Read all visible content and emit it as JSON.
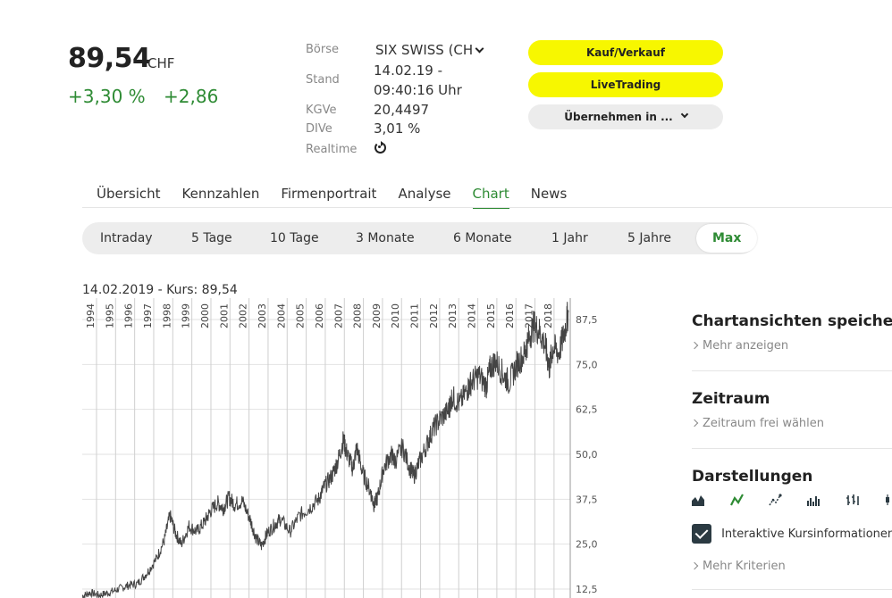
{
  "quote": {
    "price": "89,54",
    "currency": "CHF",
    "change_pct": "+3,30 %",
    "change_abs": "+2,86"
  },
  "info": {
    "exchange_label": "Börse",
    "exchange_value": "SIX SWISS (CH",
    "stand_label": "Stand",
    "stand_date": "14.02.19 -",
    "stand_time": "09:40:16 Uhr",
    "kgve_label": "KGVe",
    "kgve_value": "20,4497",
    "dive_label": "DIVe",
    "dive_value": "3,01 %",
    "realtime_label": "Realtime",
    "realtime_icon": "refresh-icon"
  },
  "buttons": {
    "buy_sell": "Kauf/Verkauf",
    "livetrading": "LiveTrading",
    "take_over": "Übernehmen in ..."
  },
  "tabs": [
    {
      "label": "Übersicht",
      "active": false
    },
    {
      "label": "Kennzahlen",
      "active": false
    },
    {
      "label": "Firmenportrait",
      "active": false
    },
    {
      "label": "Analyse",
      "active": false
    },
    {
      "label": "Chart",
      "active": true
    },
    {
      "label": "News",
      "active": false
    }
  ],
  "ranges": [
    {
      "label": "Intraday",
      "active": false
    },
    {
      "label": "5 Tage",
      "active": false
    },
    {
      "label": "10 Tage",
      "active": false
    },
    {
      "label": "3 Monate",
      "active": false
    },
    {
      "label": "6 Monate",
      "active": false
    },
    {
      "label": "1 Jahr",
      "active": false
    },
    {
      "label": "5 Jahre",
      "active": false
    },
    {
      "label": "Max",
      "active": true
    }
  ],
  "chart_caption": "14.02.2019  - Kurs: 89,54",
  "chart_data": {
    "type": "line",
    "title": "",
    "xlabel": "",
    "ylabel": "",
    "x_ticks": [
      "1994",
      "1995",
      "1996",
      "1997",
      "1998",
      "1999",
      "2000",
      "2001",
      "2002",
      "2003",
      "2004",
      "2005",
      "2006",
      "2007",
      "2008",
      "2009",
      "2010",
      "2011",
      "2012",
      "2013",
      "2014",
      "2015",
      "2016",
      "2017",
      "2018"
    ],
    "y_ticks": [
      "87,5",
      "75,0",
      "62,5",
      "50,0",
      "37,5",
      "25,0",
      "12,5"
    ],
    "y_tick_values": [
      87.5,
      75.0,
      62.5,
      50.0,
      37.5,
      25.0,
      12.5
    ],
    "xlim": [
      1993.6,
      2019.2
    ],
    "ylim": [
      10,
      90
    ],
    "grid": true,
    "color": "#444444",
    "series": [
      {
        "x": [
          1993.6,
          1994.0,
          1994.5,
          1995.0,
          1995.5,
          1996.0,
          1996.5,
          1997.0,
          1997.5,
          1997.9,
          1998.2,
          1998.5,
          1998.8,
          1999.2,
          1999.6,
          2000.0,
          2000.3,
          2000.7,
          2001.0,
          2001.3,
          2001.6,
          2002.0,
          2002.4,
          2002.7,
          2003.0,
          2003.3,
          2003.7,
          2004.0,
          2004.5,
          2005.0,
          2005.5,
          2006.0,
          2006.3,
          2006.7,
          2007.0,
          2007.3,
          2007.5,
          2007.8,
          2008.0,
          2008.3,
          2008.7,
          2008.9,
          2009.1,
          2009.4,
          2009.8,
          2010.0,
          2010.4,
          2010.8,
          2011.0,
          2011.3,
          2011.7,
          2012.0,
          2012.4,
          2012.8,
          2013.0,
          2013.4,
          2013.8,
          2014.0,
          2014.4,
          2014.8,
          2015.0,
          2015.3,
          2015.7,
          2016.0,
          2016.4,
          2016.8,
          2017.0,
          2017.3,
          2017.6,
          2017.9,
          2018.1,
          2018.3,
          2018.6,
          2018.9,
          2019.1
        ],
        "y": [
          10.5,
          11.5,
          10.8,
          11.5,
          12.5,
          13.5,
          14.0,
          17.0,
          21.0,
          26.0,
          33.0,
          28.0,
          25.0,
          30.0,
          28.5,
          31.0,
          34.0,
          36.5,
          35.0,
          38.0,
          36.0,
          37.0,
          32.0,
          27.0,
          24.5,
          28.0,
          30.5,
          32.0,
          28.5,
          33.0,
          35.0,
          37.5,
          41.0,
          44.0,
          48.0,
          54.0,
          50.0,
          46.0,
          52.0,
          45.0,
          40.0,
          36.0,
          38.0,
          46.0,
          50.0,
          48.0,
          52.0,
          46.0,
          44.0,
          48.0,
          53.0,
          57.0,
          60.0,
          62.0,
          66.0,
          64.0,
          68.0,
          70.0,
          72.0,
          69.0,
          74.0,
          76.0,
          72.0,
          70.0,
          75.0,
          78.0,
          82.0,
          86.0,
          84.0,
          80.0,
          74.0,
          80.0,
          78.0,
          84.0,
          89.5
        ]
      }
    ]
  },
  "sidebar": {
    "save_title": "Chartansichten speichern",
    "save_link": "Mehr anzeigen",
    "period_title": "Zeitraum",
    "period_link": "Zeitraum frei wählen",
    "display_title": "Darstellungen",
    "display_icons": [
      "mountain-chart-icon",
      "line-chart-icon",
      "scatter-line-icon",
      "bar-chart-icon",
      "ohlc-icon",
      "candlestick-icon"
    ],
    "interactive_label": "Interaktive Kursinformationen",
    "more_criteria": "Mehr Kriterien"
  }
}
